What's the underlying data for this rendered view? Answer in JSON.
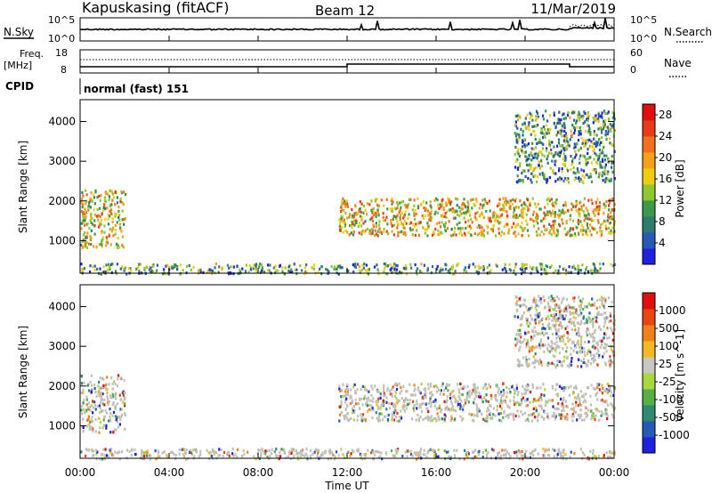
{
  "header": {
    "site": "Kapuskasing (fitACF)",
    "beam": "Beam 12",
    "date": "11/Mar/2019"
  },
  "panels": {
    "nsky": {
      "left_label": "N.Sky",
      "right_label": "N.Search",
      "left_ticks": [
        "10^5",
        "10^0"
      ],
      "right_ticks": [
        "10^5",
        "10^0"
      ]
    },
    "freq": {
      "left_label_1": "Freq.",
      "left_label_2": "[MHz]",
      "right_label": "Nave",
      "left_ticks": [
        "18",
        "8"
      ],
      "right_ticks": [
        "60",
        "0"
      ]
    },
    "cpid": {
      "label": "CPID",
      "text": "normal (fast) 151"
    }
  },
  "colors": {
    "power_scale": [
      "#2020e0",
      "#2858b8",
      "#2e7c70",
      "#3a9a48",
      "#8ec82e",
      "#f0cc10",
      "#f4a018",
      "#f07020",
      "#e83c18",
      "#e01010"
    ],
    "velocity_scale": [
      "#2020e0",
      "#2858b8",
      "#2e8a70",
      "#56b044",
      "#a8d840",
      "#c8c8c0",
      "#f4b820",
      "#f08018",
      "#e84810",
      "#e01010"
    ],
    "ground_scatter": "#c0c0b8"
  },
  "chart_data": [
    {
      "type": "heatmap",
      "title": "Power",
      "xlabel": "Time UT",
      "ylabel": "Slant Range [km]",
      "x_ticks": [
        "00:00",
        "04:00",
        "08:00",
        "12:00",
        "16:00",
        "20:00",
        "00:00"
      ],
      "xlim_hours": [
        0,
        24
      ],
      "y_ticks": [
        "1000",
        "2000",
        "3000",
        "4000"
      ],
      "ylim": [
        180,
        4550
      ],
      "colorbar": {
        "label": "Power [dB]",
        "ticks": [
          "4",
          "8",
          "12",
          "16",
          "20",
          "24",
          "28"
        ],
        "range": [
          0,
          30
        ]
      },
      "regions": [
        {
          "name": "near-range",
          "t": [
            0.0,
            24.0
          ],
          "r": [
            190,
            450
          ],
          "level": 0.3
        },
        {
          "name": "morning",
          "t": [
            0.0,
            2.0
          ],
          "r": [
            850,
            2300
          ],
          "level": 0.55
        },
        {
          "name": "evening-band",
          "t": [
            11.6,
            24.0
          ],
          "r": [
            1150,
            2100
          ],
          "level": 0.6
        },
        {
          "name": "far-range",
          "t": [
            19.5,
            24.0
          ],
          "r": [
            2500,
            4300
          ],
          "level": 0.3
        }
      ]
    },
    {
      "type": "heatmap",
      "title": "Velocity",
      "xlabel": "Time UT",
      "ylabel": "Slant Range [km]",
      "x_ticks": [
        "00:00",
        "04:00",
        "08:00",
        "12:00",
        "16:00",
        "20:00",
        "00:00"
      ],
      "xlim_hours": [
        0,
        24
      ],
      "y_ticks": [
        "1000",
        "2000",
        "3000",
        "4000"
      ],
      "ylim": [
        180,
        4550
      ],
      "colorbar": {
        "label": "Velocity [m s^-1]",
        "ticks": [
          "1000",
          "500",
          "100",
          "25",
          "-25",
          "-100",
          "-500",
          "-1000"
        ],
        "range": [
          -1000,
          1000
        ]
      },
      "regions": [
        {
          "name": "near-range",
          "t": [
            0.0,
            24.0
          ],
          "r": [
            190,
            450
          ],
          "level": 0.45
        },
        {
          "name": "morning",
          "t": [
            0.0,
            2.0
          ],
          "r": [
            850,
            2300
          ],
          "level": 0.5
        },
        {
          "name": "evening-band",
          "t": [
            11.6,
            24.0
          ],
          "r": [
            1150,
            2100
          ],
          "level": 0.5
        },
        {
          "name": "far-range",
          "t": [
            19.5,
            24.0
          ],
          "r": [
            2500,
            4300
          ],
          "level": 0.5
        }
      ]
    }
  ]
}
